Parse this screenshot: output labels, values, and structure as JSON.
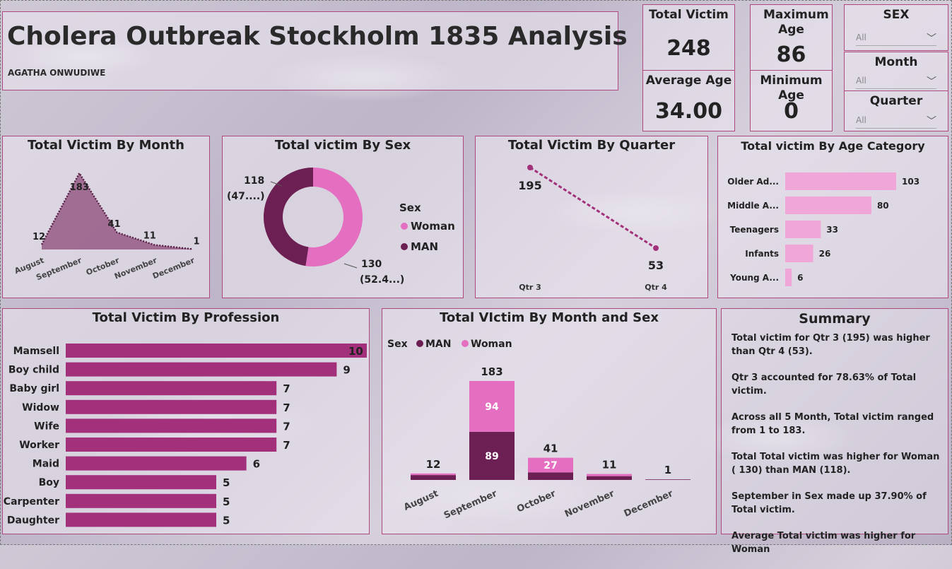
{
  "header": {
    "title": "Cholera Outbreak Stockholm 1835 Analysis",
    "author": "AGATHA ONWUDIWE"
  },
  "kpis": {
    "total_victim": {
      "label": "Total Victim",
      "value": "248"
    },
    "maximum_age": {
      "label": "Maximum Age",
      "value": "86"
    },
    "average_age": {
      "label": "Average Age",
      "value": "34.00"
    },
    "minimum_age": {
      "label": "Minimum Age",
      "value": "0"
    }
  },
  "slicers": {
    "sex": {
      "label": "SEX",
      "value": "All"
    },
    "month": {
      "label": "Month",
      "value": "All"
    },
    "quarter": {
      "label": "Quarter",
      "value": "All"
    }
  },
  "colors": {
    "accent": "#a3307a",
    "woman": "#e46fc1",
    "man": "#6b1f52",
    "area": "#8c4a78",
    "agebar": "#f0a7d7"
  },
  "chart_data": [
    {
      "id": "month",
      "type": "area",
      "title": "Total Victim By Month",
      "categories": [
        "August",
        "September",
        "October",
        "November",
        "December"
      ],
      "values": [
        12,
        183,
        41,
        11,
        1
      ],
      "labels": [
        "12",
        "183",
        "41",
        "11",
        "1"
      ]
    },
    {
      "id": "sex",
      "type": "pie",
      "title": "Total victim By Sex",
      "legend_title": "Sex",
      "series": [
        {
          "name": "Woman",
          "value": 130,
          "label": "130",
          "pct_label": "(52.4...)"
        },
        {
          "name": "MAN",
          "value": 118,
          "label": "118",
          "pct_label": "(47....)"
        }
      ]
    },
    {
      "id": "quarter",
      "type": "line",
      "title": "Total Victim By Quarter",
      "categories": [
        "Qtr 3",
        "Qtr 4"
      ],
      "values": [
        195,
        53
      ],
      "labels": [
        "195",
        "53"
      ]
    },
    {
      "id": "age",
      "type": "bar",
      "title": "Total victim By Age Category",
      "categories": [
        "Older Ad...",
        "Middle A...",
        "Teenagers",
        "Infants",
        "Young A..."
      ],
      "values": [
        103,
        80,
        33,
        26,
        6
      ]
    },
    {
      "id": "profession",
      "type": "bar",
      "title": "Total Victim By Profession",
      "categories": [
        "Mamsell",
        "Boy child",
        "Baby girl",
        "Widow",
        "Wife",
        "Worker",
        "Maid",
        "Boy",
        "Carpenter",
        "Daughter"
      ],
      "values": [
        10,
        9,
        7,
        7,
        7,
        7,
        6,
        5,
        5,
        5
      ]
    },
    {
      "id": "monthsex",
      "type": "bar",
      "title": "Total VIctim By Month and Sex",
      "legend_title": "Sex",
      "categories": [
        "August",
        "September",
        "October",
        "November",
        "December"
      ],
      "series": [
        {
          "name": "MAN",
          "values": [
            null,
            89,
            null,
            null,
            null
          ]
        },
        {
          "name": "Woman",
          "values": [
            null,
            94,
            27,
            null,
            null
          ]
        }
      ],
      "totals": [
        12,
        183,
        41,
        11,
        1
      ],
      "man_estimates": [
        9,
        89,
        14,
        7,
        1
      ]
    }
  ],
  "summary": {
    "title": "Summary",
    "paragraphs": [
      "Total victim for Qtr 3 (195) was higher than Qtr 4 (53).",
      "Qtr 3 accounted for 78.63% of Total victim.",
      "Across all 5 Month, Total victim ranged from 1 to 183.",
      "Total Total victim was higher for Woman ( 130) than MAN (118).",
      "September in Sex  made up 37.90% of Total victim.",
      "Average Total victim was higher for Woman"
    ]
  }
}
